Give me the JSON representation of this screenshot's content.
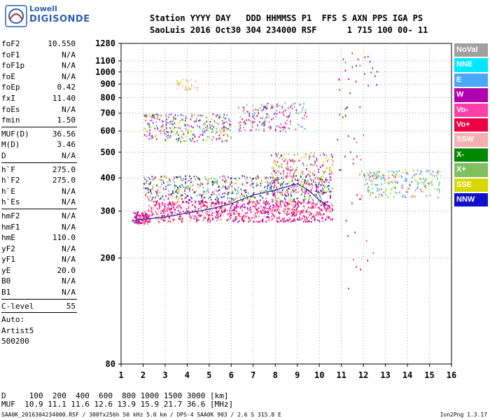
{
  "logo": {
    "line1": "Lowell",
    "line2": "DIGISONDE"
  },
  "header": {
    "row1": "Station YYYY DAY   DDD HHMMSS P1  FFS S AXN PPS IGA PS",
    "row2": "SaoLuis 2016 Oct30 304 234000 RSF      1 715 100 00- 11"
  },
  "params_a": [
    {
      "name": "foF2",
      "value": "10.550"
    },
    {
      "name": "foF1",
      "value": "N/A"
    },
    {
      "name": "foF1p",
      "value": "N/A"
    },
    {
      "name": "foE",
      "value": "N/A"
    },
    {
      "name": "foEp",
      "value": "0.42"
    },
    {
      "name": "fxI",
      "value": "11.40"
    },
    {
      "name": "foEs",
      "value": "N/A"
    },
    {
      "name": "fmin",
      "value": "1.50"
    }
  ],
  "params_b": [
    {
      "name": "MUF(D)",
      "value": "36.56"
    },
    {
      "name": "M(D)",
      "value": "3.46"
    },
    {
      "name": "D",
      "value": "N/A"
    }
  ],
  "params_c": [
    {
      "name": "h`F",
      "value": "275.0"
    },
    {
      "name": "h`F2",
      "value": "275.0"
    },
    {
      "name": "h`E",
      "value": "N/A"
    },
    {
      "name": "h`Es",
      "value": "N/A"
    }
  ],
  "params_d": [
    {
      "name": "hmF2",
      "value": "N/A"
    },
    {
      "name": "hmF1",
      "value": "N/A"
    },
    {
      "name": "hmE",
      "value": "110.0"
    },
    {
      "name": "yF2",
      "value": "N/A"
    },
    {
      "name": "yF1",
      "value": "N/A"
    },
    {
      "name": "yE",
      "value": "20.0"
    },
    {
      "name": "B0",
      "value": "N/A"
    },
    {
      "name": "B1",
      "value": "N/A"
    }
  ],
  "params_e": [
    {
      "name": "C-level",
      "value": "55"
    }
  ],
  "auto": {
    "line1": "Auto:",
    "line2": "Artist5",
    "line3": "500200"
  },
  "legend": [
    {
      "label": "NoVal",
      "color": "#a0a0a0"
    },
    {
      "label": "NNE",
      "color": "#00e8ff"
    },
    {
      "label": "E",
      "color": "#4aa8ff"
    },
    {
      "label": "W",
      "color": "#b000b0"
    },
    {
      "label": "Vo-",
      "color": "#ff3fa8"
    },
    {
      "label": "Vo+",
      "color": "#ee0044"
    },
    {
      "label": "SSW",
      "color": "#f4b0b0"
    },
    {
      "label": "X-",
      "color": "#008800"
    },
    {
      "label": "X+",
      "color": "#80c060"
    },
    {
      "label": "SSE",
      "color": "#d8d800"
    },
    {
      "label": "NNW",
      "color": "#1010c8"
    }
  ],
  "bottom": {
    "row1": "D     100  200  400  600  800 1000 1500 3000 [km]",
    "row2": "MUF  10.9 11.1 11.6 12.6 13.9 15.9 21.7 36.6 [MHz]"
  },
  "footer": {
    "left": "SAA0K_2016304234000.RSF / 300fx256h 50 kHz 5.0 km / DPS-4 SAA0K 903 / 2.6 S 315.8 E",
    "right": "Ion2Png 1.3.17"
  },
  "chart_data": {
    "type": "scatter",
    "title": "",
    "xlabel": "",
    "ylabel": "",
    "xlim": [
      1,
      16
    ],
    "ylim": [
      80,
      1280
    ],
    "y_scale": "log",
    "x_ticks": [
      1,
      2,
      3,
      4,
      5,
      6,
      7,
      8,
      9,
      10,
      11,
      12,
      13,
      14,
      15,
      16
    ],
    "y_ticks": [
      80,
      200,
      300,
      400,
      500,
      600,
      700,
      800,
      900,
      1000,
      1100,
      1280
    ],
    "trace": {
      "x": [
        1.5,
        2,
        3,
        4,
        5,
        6,
        7,
        8,
        8.5,
        9,
        9.5,
        10,
        10.5
      ],
      "y": [
        275,
        280,
        285,
        295,
        305,
        320,
        345,
        360,
        370,
        380,
        360,
        330,
        310
      ]
    },
    "clusters": [
      {
        "x": [
          1.5,
          2.2
        ],
        "y": [
          270,
          300
        ],
        "colors": [
          "Vo+",
          "Vo-",
          "W"
        ],
        "density": 90
      },
      {
        "x": [
          2.2,
          10.6
        ],
        "y": [
          275,
          330
        ],
        "colors": [
          "Vo+",
          "Vo-",
          "W",
          "SSW"
        ],
        "density": 900
      },
      {
        "x": [
          2,
          10.5
        ],
        "y": [
          330,
          410
        ],
        "colors": [
          "Vo-",
          "W",
          "SSE",
          "X+",
          "X-",
          "E",
          "NNW"
        ],
        "density": 600
      },
      {
        "x": [
          7.8,
          10.6
        ],
        "y": [
          350,
          500
        ],
        "colors": [
          "SSE",
          "X+",
          "W",
          "Vo-"
        ],
        "density": 250
      },
      {
        "x": [
          2,
          6
        ],
        "y": [
          550,
          700
        ],
        "colors": [
          "W",
          "SSE",
          "X-",
          "Vo-",
          "E"
        ],
        "density": 300
      },
      {
        "x": [
          6.3,
          9.4
        ],
        "y": [
          600,
          770
        ],
        "colors": [
          "W",
          "Vo-",
          "X+",
          "E"
        ],
        "density": 180
      },
      {
        "x": [
          3.5,
          4.5
        ],
        "y": [
          860,
          950
        ],
        "colors": [
          "SSE",
          "SSW"
        ],
        "density": 30
      },
      {
        "x": [
          11.8,
          15.5
        ],
        "y": [
          340,
          430
        ],
        "colors": [
          "NNE",
          "E",
          "SSE",
          "X+",
          "Vo-"
        ],
        "density": 220
      },
      {
        "x": [
          10.8,
          12.6
        ],
        "y": [
          150,
          1200
        ],
        "colors": [
          "Vo+",
          "Vo-",
          "W",
          "X-"
        ],
        "density": 60
      }
    ]
  }
}
